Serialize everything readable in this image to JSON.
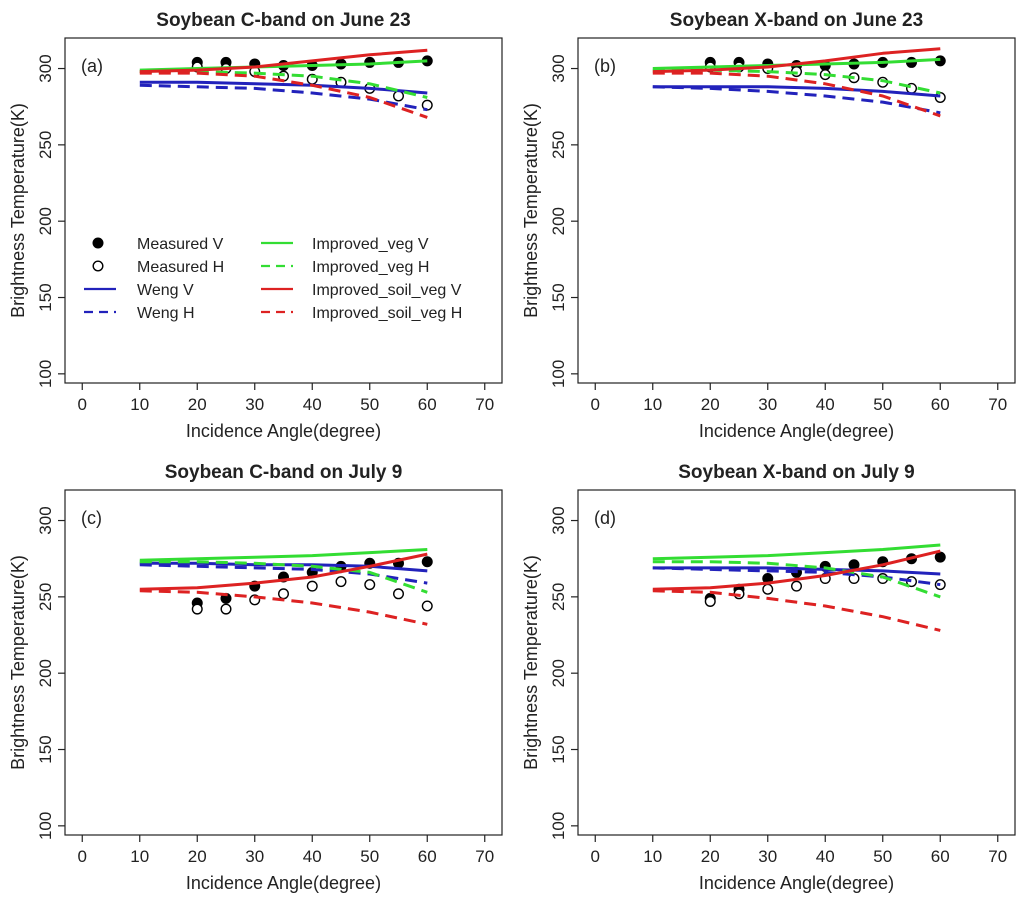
{
  "chart_data": [
    {
      "type": "line",
      "panel_label": "(a)",
      "title": "Soybean C-band on June 23",
      "xlabel": "Incidence Angle(degree)",
      "ylabel": "Brightness Temperature(K)",
      "xlim": [
        -3,
        73
      ],
      "ylim": [
        94,
        320
      ],
      "x_ticks": [
        0,
        10,
        20,
        30,
        40,
        50,
        60,
        70
      ],
      "y_ticks": [
        100,
        150,
        200,
        250,
        300
      ],
      "x_tick_labels": [
        "0",
        "10",
        "20",
        "30",
        "40",
        "50",
        "60",
        "70"
      ],
      "y_tick_labels": [
        "100",
        "150",
        "200",
        "250",
        "300"
      ],
      "grid": false,
      "show_legend": true,
      "legend_position": "middle-left",
      "series": [
        {
          "name": "Measured V",
          "kind": "point",
          "fill": "filled",
          "color": "#000000",
          "x": [
            20,
            25,
            30,
            35,
            40,
            45,
            50,
            55,
            60
          ],
          "y": [
            304,
            304,
            303,
            302,
            302,
            303,
            304,
            304,
            305
          ]
        },
        {
          "name": "Measured H",
          "kind": "point",
          "fill": "open",
          "color": "#000000",
          "x": [
            20,
            25,
            30,
            35,
            40,
            45,
            50,
            55,
            60
          ],
          "y": [
            301,
            300,
            298,
            295,
            293,
            291,
            287,
            282,
            276
          ]
        },
        {
          "name": "Weng V",
          "kind": "line",
          "dash": "solid",
          "color": "#2222bb",
          "x": [
            10,
            20,
            30,
            40,
            50,
            60
          ],
          "y": [
            291,
            291,
            290,
            289,
            287,
            284
          ]
        },
        {
          "name": "Weng H",
          "kind": "line",
          "dash": "dashed",
          "color": "#2222bb",
          "x": [
            10,
            20,
            30,
            40,
            50,
            60
          ],
          "y": [
            289,
            288,
            287,
            284,
            280,
            273
          ]
        },
        {
          "name": "Improved_veg V",
          "kind": "line",
          "dash": "solid",
          "color": "#33dd33",
          "x": [
            10,
            20,
            30,
            40,
            50,
            60
          ],
          "y": [
            299,
            300,
            301,
            302,
            303,
            305
          ]
        },
        {
          "name": "Improved_veg H",
          "kind": "line",
          "dash": "dashed",
          "color": "#33dd33",
          "x": [
            10,
            20,
            30,
            40,
            50,
            60
          ],
          "y": [
            298,
            298,
            297,
            295,
            290,
            281
          ]
        },
        {
          "name": "Improved_soil_veg V",
          "kind": "line",
          "dash": "solid",
          "color": "#dd2222",
          "x": [
            10,
            20,
            30,
            40,
            50,
            60
          ],
          "y": [
            298,
            299,
            301,
            305,
            309,
            312
          ]
        },
        {
          "name": "Improved_soil_veg H",
          "kind": "line",
          "dash": "dashed",
          "color": "#dd2222",
          "x": [
            10,
            20,
            30,
            40,
            50,
            60
          ],
          "y": [
            297,
            297,
            295,
            289,
            281,
            268
          ]
        }
      ]
    },
    {
      "type": "line",
      "panel_label": "(b)",
      "title": "Soybean X-band on June 23",
      "xlabel": "Incidence Angle(degree)",
      "ylabel": "Brightness Temperature(K)",
      "xlim": [
        -3,
        73
      ],
      "ylim": [
        94,
        320
      ],
      "x_ticks": [
        0,
        10,
        20,
        30,
        40,
        50,
        60,
        70
      ],
      "y_ticks": [
        100,
        150,
        200,
        250,
        300
      ],
      "x_tick_labels": [
        "0",
        "10",
        "20",
        "30",
        "40",
        "50",
        "60",
        "70"
      ],
      "y_tick_labels": [
        "100",
        "150",
        "200",
        "250",
        "300"
      ],
      "grid": false,
      "show_legend": false,
      "series": [
        {
          "name": "Measured V",
          "kind": "point",
          "fill": "filled",
          "color": "#000000",
          "x": [
            20,
            25,
            30,
            35,
            40,
            45,
            50,
            55,
            60
          ],
          "y": [
            304,
            304,
            303,
            302,
            302,
            303,
            304,
            304,
            305
          ]
        },
        {
          "name": "Measured H",
          "kind": "point",
          "fill": "open",
          "color": "#000000",
          "x": [
            20,
            25,
            30,
            35,
            40,
            45,
            50,
            55,
            60
          ],
          "y": [
            301,
            301,
            300,
            298,
            296,
            294,
            291,
            287,
            281
          ]
        },
        {
          "name": "Weng V",
          "kind": "line",
          "dash": "solid",
          "color": "#2222bb",
          "x": [
            10,
            20,
            30,
            40,
            50,
            60
          ],
          "y": [
            288,
            288,
            288,
            287,
            285,
            282
          ]
        },
        {
          "name": "Weng H",
          "kind": "line",
          "dash": "dashed",
          "color": "#2222bb",
          "x": [
            10,
            20,
            30,
            40,
            50,
            60
          ],
          "y": [
            288,
            287,
            285,
            282,
            278,
            271
          ]
        },
        {
          "name": "Improved_veg V",
          "kind": "line",
          "dash": "solid",
          "color": "#33dd33",
          "x": [
            10,
            20,
            30,
            40,
            50,
            60
          ],
          "y": [
            300,
            301,
            302,
            303,
            304,
            306
          ]
        },
        {
          "name": "Improved_veg H",
          "kind": "line",
          "dash": "dashed",
          "color": "#33dd33",
          "x": [
            10,
            20,
            30,
            40,
            50,
            60
          ],
          "y": [
            299,
            299,
            298,
            296,
            292,
            284
          ]
        },
        {
          "name": "Improved_soil_veg V",
          "kind": "line",
          "dash": "solid",
          "color": "#dd2222",
          "x": [
            10,
            20,
            30,
            40,
            50,
            60
          ],
          "y": [
            298,
            299,
            301,
            305,
            310,
            313
          ]
        },
        {
          "name": "Improved_soil_veg H",
          "kind": "line",
          "dash": "dashed",
          "color": "#dd2222",
          "x": [
            10,
            20,
            30,
            40,
            50,
            60
          ],
          "y": [
            297,
            297,
            295,
            290,
            282,
            269
          ]
        }
      ]
    },
    {
      "type": "line",
      "panel_label": "(c)",
      "title": "Soybean C-band on July 9",
      "xlabel": "Incidence Angle(degree)",
      "ylabel": "Brightness Temperature(K)",
      "xlim": [
        -3,
        73
      ],
      "ylim": [
        94,
        320
      ],
      "x_ticks": [
        0,
        10,
        20,
        30,
        40,
        50,
        60,
        70
      ],
      "y_ticks": [
        100,
        150,
        200,
        250,
        300
      ],
      "x_tick_labels": [
        "0",
        "10",
        "20",
        "30",
        "40",
        "50",
        "60",
        "70"
      ],
      "y_tick_labels": [
        "100",
        "150",
        "200",
        "250",
        "300"
      ],
      "grid": false,
      "show_legend": false,
      "series": [
        {
          "name": "Measured V",
          "kind": "point",
          "fill": "filled",
          "color": "#000000",
          "x": [
            20,
            25,
            30,
            35,
            40,
            45,
            50,
            55,
            60
          ],
          "y": [
            246,
            249,
            257,
            263,
            266,
            270,
            272,
            272,
            273
          ]
        },
        {
          "name": "Measured H",
          "kind": "point",
          "fill": "open",
          "color": "#000000",
          "x": [
            20,
            25,
            30,
            35,
            40,
            45,
            50,
            55,
            60
          ],
          "y": [
            242,
            242,
            248,
            252,
            257,
            260,
            258,
            252,
            244
          ]
        },
        {
          "name": "Weng V",
          "kind": "line",
          "dash": "solid",
          "color": "#2222bb",
          "x": [
            10,
            20,
            30,
            40,
            50,
            60
          ],
          "y": [
            272,
            272,
            271,
            271,
            270,
            267
          ]
        },
        {
          "name": "Weng H",
          "kind": "line",
          "dash": "dashed",
          "color": "#2222bb",
          "x": [
            10,
            20,
            30,
            40,
            50,
            60
          ],
          "y": [
            271,
            270,
            269,
            268,
            265,
            259
          ]
        },
        {
          "name": "Improved_veg V",
          "kind": "line",
          "dash": "solid",
          "color": "#33dd33",
          "x": [
            10,
            20,
            30,
            40,
            50,
            60
          ],
          "y": [
            274,
            275,
            276,
            277,
            279,
            281
          ]
        },
        {
          "name": "Improved_veg H",
          "kind": "line",
          "dash": "dashed",
          "color": "#33dd33",
          "x": [
            10,
            20,
            30,
            40,
            50,
            60
          ],
          "y": [
            273,
            273,
            272,
            270,
            266,
            253
          ]
        },
        {
          "name": "Improved_soil_veg V",
          "kind": "line",
          "dash": "solid",
          "color": "#dd2222",
          "x": [
            10,
            20,
            30,
            40,
            50,
            60
          ],
          "y": [
            255,
            256,
            259,
            263,
            270,
            278
          ]
        },
        {
          "name": "Improved_soil_veg H",
          "kind": "line",
          "dash": "dashed",
          "color": "#dd2222",
          "x": [
            10,
            20,
            30,
            40,
            50,
            60
          ],
          "y": [
            254,
            253,
            250,
            246,
            240,
            232
          ]
        }
      ]
    },
    {
      "type": "line",
      "panel_label": "(d)",
      "title": "Soybean X-band on July 9",
      "xlabel": "Incidence Angle(degree)",
      "ylabel": "Brightness Temperature(K)",
      "xlim": [
        -3,
        73
      ],
      "ylim": [
        94,
        320
      ],
      "x_ticks": [
        0,
        10,
        20,
        30,
        40,
        50,
        60,
        70
      ],
      "y_ticks": [
        100,
        150,
        200,
        250,
        300
      ],
      "x_tick_labels": [
        "0",
        "10",
        "20",
        "30",
        "40",
        "50",
        "60",
        "70"
      ],
      "y_tick_labels": [
        "100",
        "150",
        "200",
        "250",
        "300"
      ],
      "grid": false,
      "show_legend": false,
      "series": [
        {
          "name": "Measured V",
          "kind": "point",
          "fill": "filled",
          "color": "#000000",
          "x": [
            20,
            25,
            30,
            35,
            40,
            45,
            50,
            55,
            60
          ],
          "y": [
            249,
            255,
            262,
            266,
            270,
            271,
            273,
            275,
            276
          ]
        },
        {
          "name": "Measured H",
          "kind": "point",
          "fill": "open",
          "color": "#000000",
          "x": [
            20,
            25,
            30,
            35,
            40,
            45,
            50,
            55,
            60
          ],
          "y": [
            247,
            252,
            255,
            257,
            262,
            262,
            262,
            260,
            258
          ]
        },
        {
          "name": "Weng V",
          "kind": "line",
          "dash": "solid",
          "color": "#2222bb",
          "x": [
            10,
            20,
            30,
            40,
            50,
            60
          ],
          "y": [
            269,
            269,
            269,
            268,
            267,
            265
          ]
        },
        {
          "name": "Weng H",
          "kind": "line",
          "dash": "dashed",
          "color": "#2222bb",
          "x": [
            10,
            20,
            30,
            40,
            50,
            60
          ],
          "y": [
            269,
            268,
            267,
            266,
            263,
            258
          ]
        },
        {
          "name": "Improved_veg V",
          "kind": "line",
          "dash": "solid",
          "color": "#33dd33",
          "x": [
            10,
            20,
            30,
            40,
            50,
            60
          ],
          "y": [
            275,
            276,
            277,
            279,
            281,
            284
          ]
        },
        {
          "name": "Improved_veg H",
          "kind": "line",
          "dash": "dashed",
          "color": "#33dd33",
          "x": [
            10,
            20,
            30,
            40,
            50,
            60
          ],
          "y": [
            273,
            273,
            272,
            269,
            263,
            250
          ]
        },
        {
          "name": "Improved_soil_veg V",
          "kind": "line",
          "dash": "solid",
          "color": "#dd2222",
          "x": [
            10,
            20,
            30,
            40,
            50,
            60
          ],
          "y": [
            255,
            256,
            259,
            264,
            271,
            280
          ]
        },
        {
          "name": "Improved_soil_veg H",
          "kind": "line",
          "dash": "dashed",
          "color": "#dd2222",
          "x": [
            10,
            20,
            30,
            40,
            50,
            60
          ],
          "y": [
            254,
            253,
            249,
            244,
            237,
            228
          ]
        }
      ]
    }
  ]
}
